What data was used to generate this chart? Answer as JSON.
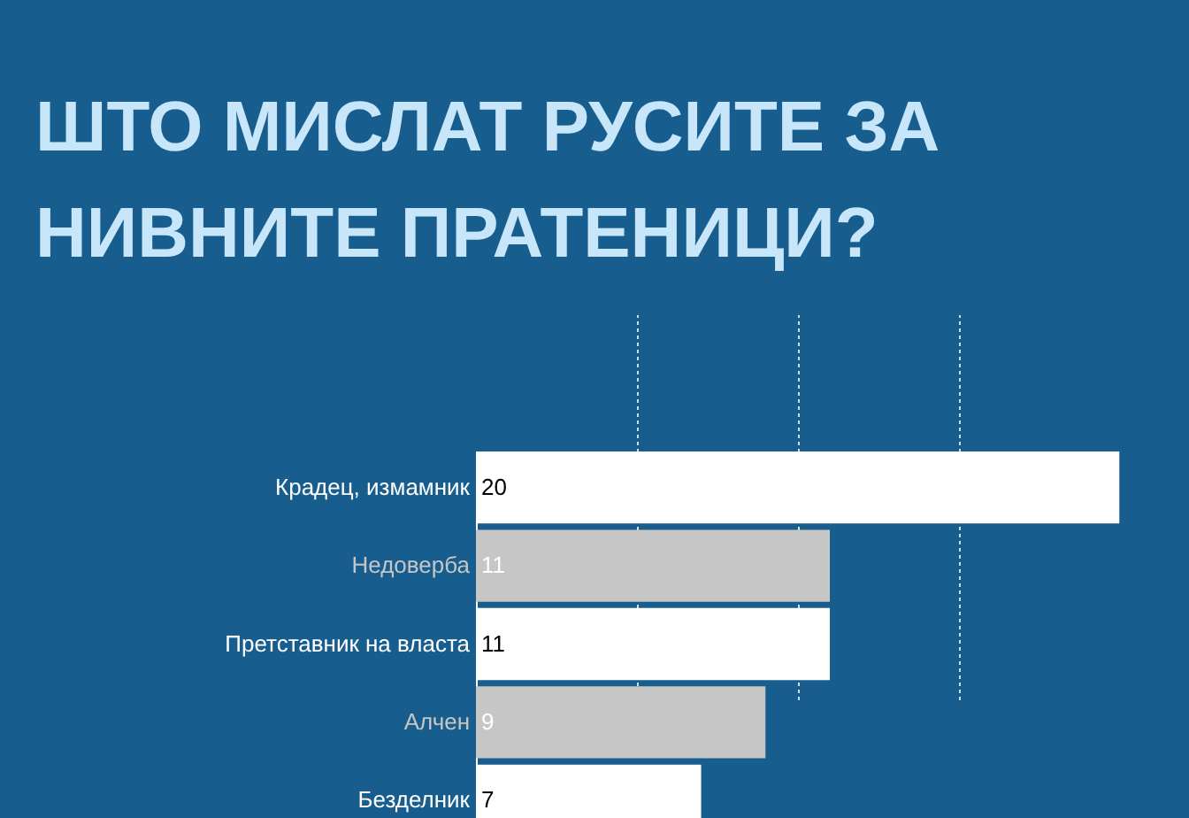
{
  "chart_data": {
    "type": "bar",
    "orientation": "horizontal",
    "title": "ШТО МИСЛАТ РУСИТЕ ЗА НИВНИТЕ ПРАТЕНИЦИ?",
    "categories": [
      "Крадец, измамник",
      "Недоверба",
      "Претставник на власта",
      "Алчен",
      "Безделник"
    ],
    "values": [
      20,
      11,
      11,
      9,
      7
    ],
    "colors": [
      "#ffffff",
      "#c6c6c6",
      "#ffffff",
      "#c6c6c6",
      "#ffffff"
    ],
    "xlim": [
      0,
      22
    ],
    "xticks": [
      {
        "value": 5,
        "label": null
      },
      {
        "value": 10,
        "label": null
      },
      {
        "value": 15,
        "label": null
      }
    ],
    "grid": "x",
    "tick_labels": "y",
    "data_labels": true
  }
}
